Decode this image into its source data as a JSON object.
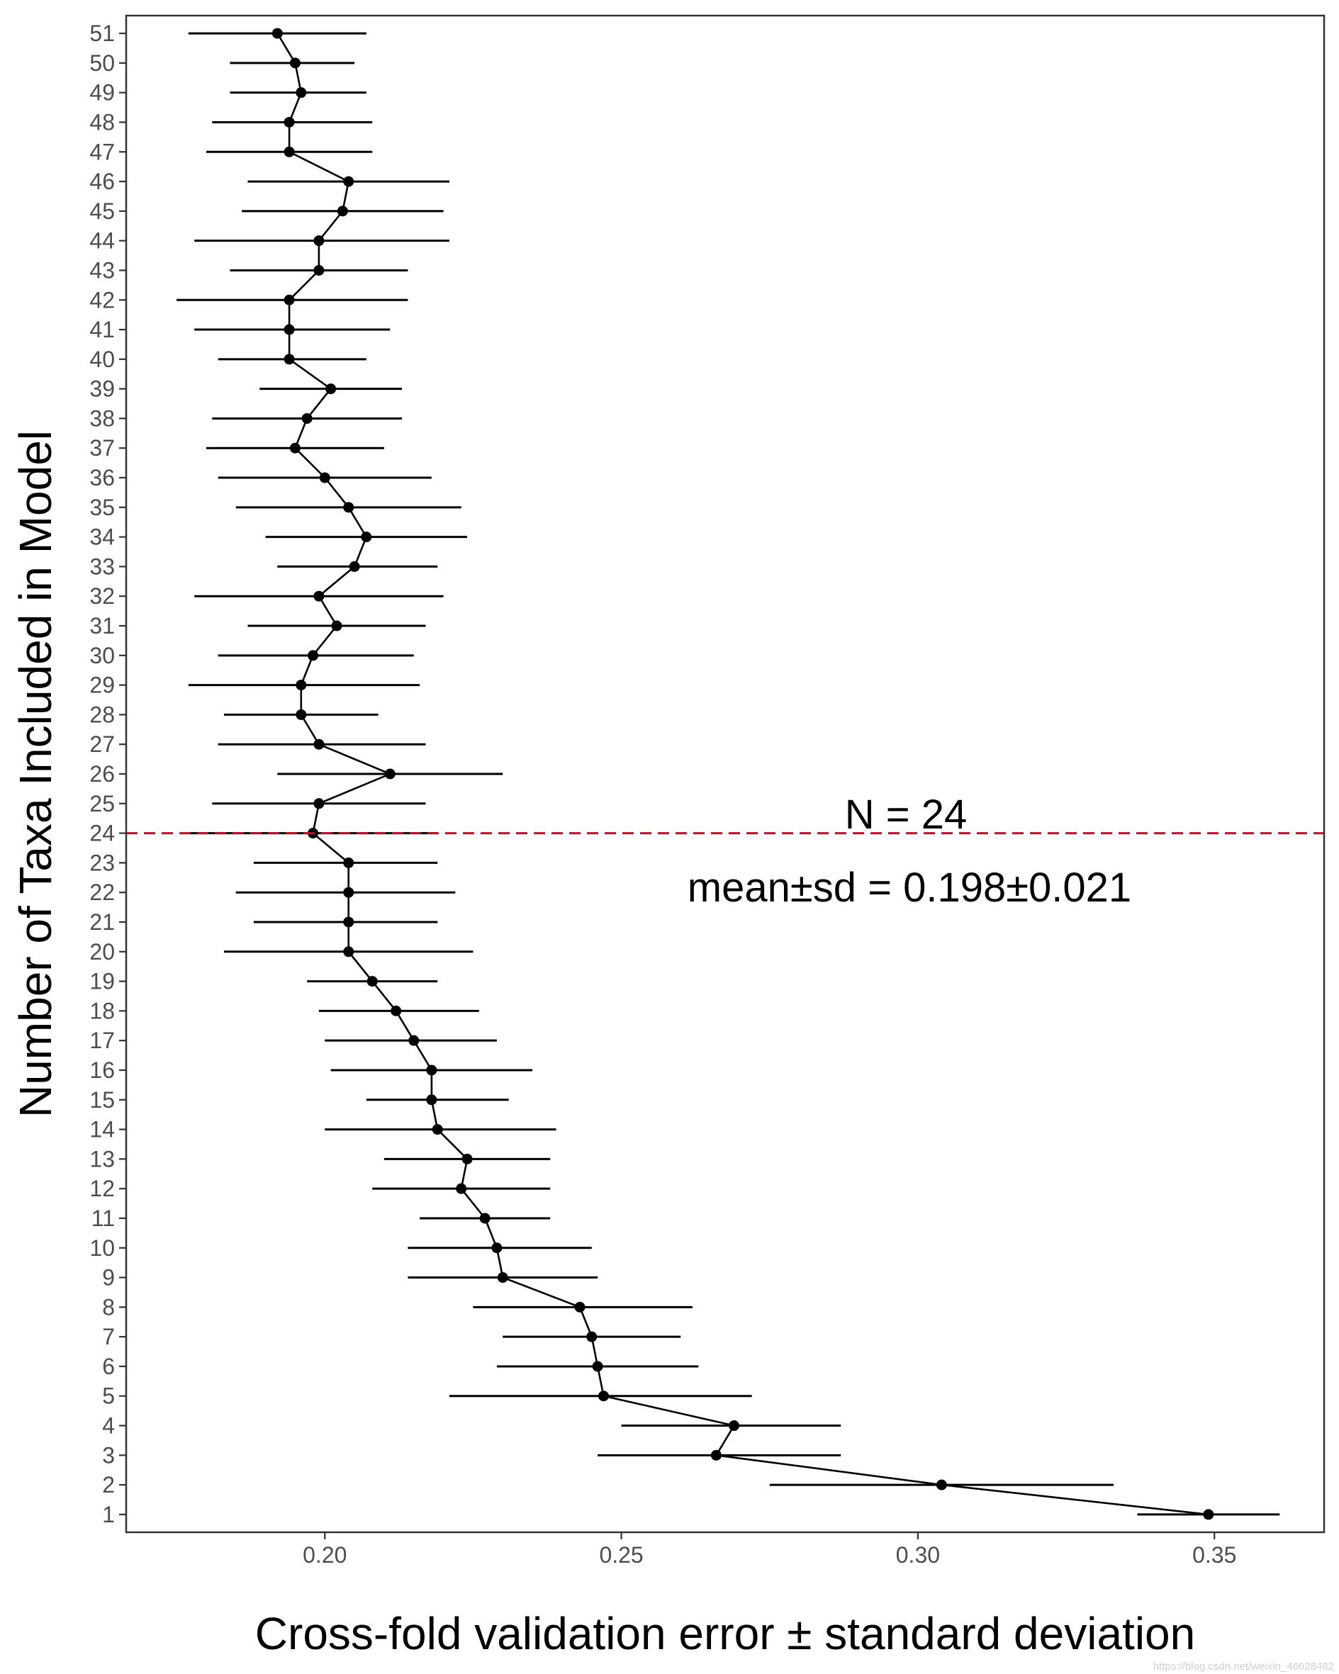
{
  "chart_data": {
    "type": "scatter",
    "xlabel": "Cross-fold validation error ± standard deviation",
    "ylabel": "Number of Taxa Included in Model",
    "xlim": [
      0.1665,
      0.3685
    ],
    "ylim": [
      0.4,
      51.6
    ],
    "x_ticks": [
      0.2,
      0.25,
      0.3,
      0.35
    ],
    "x_tick_labels": [
      "0.20",
      "0.25",
      "0.30",
      "0.35"
    ],
    "y_ticks": [
      1,
      2,
      3,
      4,
      5,
      6,
      7,
      8,
      9,
      10,
      11,
      12,
      13,
      14,
      15,
      16,
      17,
      18,
      19,
      20,
      21,
      22,
      23,
      24,
      25,
      26,
      27,
      28,
      29,
      30,
      31,
      32,
      33,
      34,
      35,
      36,
      37,
      38,
      39,
      40,
      41,
      42,
      43,
      44,
      45,
      46,
      47,
      48,
      49,
      50,
      51
    ],
    "grid": false,
    "reference_line": {
      "y": 24,
      "style": "dashed",
      "color": "#b2182b"
    },
    "annotations": [
      "N = 24",
      "mean±sd = 0.198±0.021"
    ],
    "series": [
      {
        "name": "cv_error",
        "color": "#000000",
        "points": [
          {
            "n": 1,
            "mean": 0.349,
            "lo": 0.337,
            "hi": 0.361
          },
          {
            "n": 2,
            "mean": 0.304,
            "lo": 0.275,
            "hi": 0.333
          },
          {
            "n": 3,
            "mean": 0.266,
            "lo": 0.246,
            "hi": 0.287
          },
          {
            "n": 4,
            "mean": 0.269,
            "lo": 0.25,
            "hi": 0.287
          },
          {
            "n": 5,
            "mean": 0.247,
            "lo": 0.221,
            "hi": 0.272
          },
          {
            "n": 6,
            "mean": 0.246,
            "lo": 0.229,
            "hi": 0.263
          },
          {
            "n": 7,
            "mean": 0.245,
            "lo": 0.23,
            "hi": 0.26
          },
          {
            "n": 8,
            "mean": 0.243,
            "lo": 0.225,
            "hi": 0.262
          },
          {
            "n": 9,
            "mean": 0.23,
            "lo": 0.214,
            "hi": 0.246
          },
          {
            "n": 10,
            "mean": 0.229,
            "lo": 0.214,
            "hi": 0.245
          },
          {
            "n": 11,
            "mean": 0.227,
            "lo": 0.216,
            "hi": 0.238
          },
          {
            "n": 12,
            "mean": 0.223,
            "lo": 0.208,
            "hi": 0.238
          },
          {
            "n": 13,
            "mean": 0.224,
            "lo": 0.21,
            "hi": 0.238
          },
          {
            "n": 14,
            "mean": 0.219,
            "lo": 0.2,
            "hi": 0.239
          },
          {
            "n": 15,
            "mean": 0.218,
            "lo": 0.207,
            "hi": 0.231
          },
          {
            "n": 16,
            "mean": 0.218,
            "lo": 0.201,
            "hi": 0.235
          },
          {
            "n": 17,
            "mean": 0.215,
            "lo": 0.2,
            "hi": 0.229
          },
          {
            "n": 18,
            "mean": 0.212,
            "lo": 0.199,
            "hi": 0.226
          },
          {
            "n": 19,
            "mean": 0.208,
            "lo": 0.197,
            "hi": 0.219
          },
          {
            "n": 20,
            "mean": 0.204,
            "lo": 0.183,
            "hi": 0.225
          },
          {
            "n": 21,
            "mean": 0.204,
            "lo": 0.188,
            "hi": 0.219
          },
          {
            "n": 22,
            "mean": 0.204,
            "lo": 0.185,
            "hi": 0.222
          },
          {
            "n": 23,
            "mean": 0.204,
            "lo": 0.188,
            "hi": 0.219
          },
          {
            "n": 24,
            "mean": 0.198,
            "lo": 0.177,
            "hi": 0.219
          },
          {
            "n": 25,
            "mean": 0.199,
            "lo": 0.181,
            "hi": 0.217
          },
          {
            "n": 26,
            "mean": 0.211,
            "lo": 0.192,
            "hi": 0.23
          },
          {
            "n": 27,
            "mean": 0.199,
            "lo": 0.182,
            "hi": 0.217
          },
          {
            "n": 28,
            "mean": 0.196,
            "lo": 0.183,
            "hi": 0.209
          },
          {
            "n": 29,
            "mean": 0.196,
            "lo": 0.177,
            "hi": 0.216
          },
          {
            "n": 30,
            "mean": 0.198,
            "lo": 0.182,
            "hi": 0.215
          },
          {
            "n": 31,
            "mean": 0.202,
            "lo": 0.187,
            "hi": 0.217
          },
          {
            "n": 32,
            "mean": 0.199,
            "lo": 0.178,
            "hi": 0.22
          },
          {
            "n": 33,
            "mean": 0.205,
            "lo": 0.192,
            "hi": 0.219
          },
          {
            "n": 34,
            "mean": 0.207,
            "lo": 0.19,
            "hi": 0.224
          },
          {
            "n": 35,
            "mean": 0.204,
            "lo": 0.185,
            "hi": 0.223
          },
          {
            "n": 36,
            "mean": 0.2,
            "lo": 0.182,
            "hi": 0.218
          },
          {
            "n": 37,
            "mean": 0.195,
            "lo": 0.18,
            "hi": 0.21
          },
          {
            "n": 38,
            "mean": 0.197,
            "lo": 0.181,
            "hi": 0.213
          },
          {
            "n": 39,
            "mean": 0.201,
            "lo": 0.189,
            "hi": 0.213
          },
          {
            "n": 40,
            "mean": 0.194,
            "lo": 0.182,
            "hi": 0.207
          },
          {
            "n": 41,
            "mean": 0.194,
            "lo": 0.178,
            "hi": 0.211
          },
          {
            "n": 42,
            "mean": 0.194,
            "lo": 0.175,
            "hi": 0.214
          },
          {
            "n": 43,
            "mean": 0.199,
            "lo": 0.184,
            "hi": 0.214
          },
          {
            "n": 44,
            "mean": 0.199,
            "lo": 0.178,
            "hi": 0.221
          },
          {
            "n": 45,
            "mean": 0.203,
            "lo": 0.186,
            "hi": 0.22
          },
          {
            "n": 46,
            "mean": 0.204,
            "lo": 0.187,
            "hi": 0.221
          },
          {
            "n": 47,
            "mean": 0.194,
            "lo": 0.18,
            "hi": 0.208
          },
          {
            "n": 48,
            "mean": 0.194,
            "lo": 0.181,
            "hi": 0.208
          },
          {
            "n": 49,
            "mean": 0.196,
            "lo": 0.184,
            "hi": 0.207
          },
          {
            "n": 50,
            "mean": 0.195,
            "lo": 0.184,
            "hi": 0.205
          },
          {
            "n": 51,
            "mean": 0.192,
            "lo": 0.177,
            "hi": 0.207
          }
        ]
      }
    ]
  },
  "watermark": "https://blog.csdn.net/weixin_46628482"
}
